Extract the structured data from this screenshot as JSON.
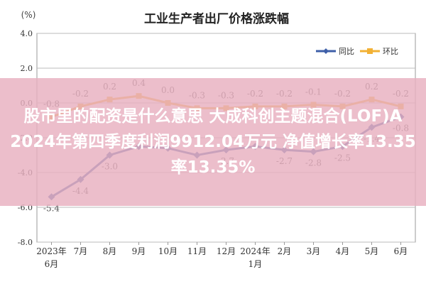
{
  "chart_data": {
    "type": "line",
    "title": "工业生产者出厂价格涨跌幅",
    "ylabel": "(%)",
    "ylim": [
      -8.0,
      4.0
    ],
    "yticks": [
      "4.0",
      "2.0",
      "0.0",
      "-2.0",
      "-4.0",
      "-6.0",
      "-8.0"
    ],
    "ytick_values": [
      4,
      2,
      0,
      -2,
      -4,
      -6,
      -8
    ],
    "categories": [
      "2023年6月",
      "7月",
      "8月",
      "9月",
      "10月",
      "11月",
      "12月",
      "2024年1月",
      "2月",
      "3月",
      "4月",
      "5月",
      "6月"
    ],
    "x_labels": [
      [
        "2023年",
        "6月"
      ],
      [
        "7月"
      ],
      [
        "8月"
      ],
      [
        "9月"
      ],
      [
        "10月"
      ],
      [
        "11月"
      ],
      [
        "12月"
      ],
      [
        "2024年",
        "1月"
      ],
      [
        "2月"
      ],
      [
        "3月"
      ],
      [
        "4月"
      ],
      [
        "5月"
      ],
      [
        "6月"
      ]
    ],
    "series": [
      {
        "name": "同比",
        "color": "#3e5fa8",
        "values": [
          -5.4,
          -4.4,
          -3.0,
          -2.5,
          -2.6,
          -3.0,
          -2.7,
          -2.5,
          -2.7,
          -2.8,
          -2.5,
          -1.4,
          -0.8
        ],
        "labels": [
          "-5.4",
          "-4.4",
          "-3.0",
          "",
          "",
          "",
          "-2.7",
          "",
          "-2.7",
          "-2.8",
          "-2.5",
          "-1.4",
          "-0.8"
        ]
      },
      {
        "name": "环比",
        "color": "#f2b134",
        "values": [
          -0.8,
          -0.2,
          0.2,
          0.4,
          0.0,
          -0.3,
          -0.3,
          -0.2,
          -0.2,
          -0.1,
          -0.2,
          0.2,
          -0.2
        ],
        "labels": [
          "-0.8",
          "-0.2",
          "0.2",
          "0.4",
          "0.0",
          "-0.3",
          "-0.3",
          "-0.2",
          "-0.2",
          "-0.1",
          "-0.2",
          "0.2",
          "-0.2"
        ]
      }
    ],
    "grid": true,
    "legend_position": "top-right"
  },
  "overlay": {
    "line1": "股市里的配资是什么意思 大成科创主题混合(LOF)A",
    "line2": "2024年第四季度利润9912.04万元 净值增长率13.35",
    "line3": "率13.35%"
  }
}
